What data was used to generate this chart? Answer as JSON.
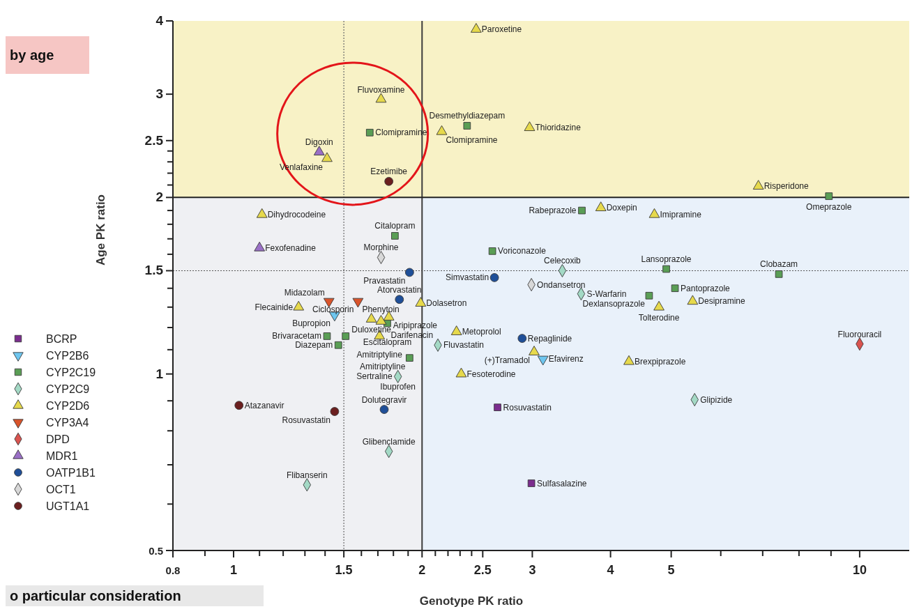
{
  "chart_data": {
    "type": "scatter",
    "xlabel": "Genotype PK ratio",
    "ylabel": "Age PK ratio",
    "log": "xy",
    "grid": false,
    "legend": "left",
    "xlim": [
      0.8,
      12
    ],
    "xticks": [
      0.8,
      {
        "value": 0.9,
        "label": null
      },
      1,
      {
        "value": 1.1,
        "label": null
      },
      {
        "value": 1.2,
        "label": null
      },
      {
        "value": 1.3,
        "label": null
      },
      {
        "value": 1.4,
        "label": null
      },
      1.5,
      {
        "value": 1.6,
        "label": null
      },
      {
        "value": 1.7,
        "label": null
      },
      {
        "value": 1.8,
        "label": null
      },
      {
        "value": 1.9,
        "label": null
      },
      2,
      {
        "value": 2.1,
        "label": null
      },
      {
        "value": 2.2,
        "label": null
      },
      {
        "value": 2.3,
        "label": null
      },
      {
        "value": 2.4,
        "label": null
      },
      2.5,
      3,
      4,
      5,
      {
        "value": 6,
        "label": null
      },
      {
        "value": 7,
        "label": null
      },
      {
        "value": 8,
        "label": null
      },
      {
        "value": 9,
        "label": null
      },
      10
    ],
    "ylim": [
      0.5,
      4
    ],
    "yticks": [
      0.5,
      {
        "value": 0.6,
        "label": null
      },
      {
        "value": 0.7,
        "label": null
      },
      {
        "value": 0.8,
        "label": null
      },
      {
        "value": 0.9,
        "label": null
      },
      1,
      {
        "value": 1.1,
        "label": null
      },
      {
        "value": 1.2,
        "label": null
      },
      {
        "value": 1.3,
        "label": null
      },
      {
        "value": 1.4,
        "label": null
      },
      1.5,
      {
        "value": 1.6,
        "label": null
      },
      {
        "value": 1.7,
        "label": null
      },
      {
        "value": 1.8,
        "label": null
      },
      {
        "value": 1.9,
        "label": null
      },
      2,
      {
        "value": 2.1,
        "label": null
      },
      {
        "value": 2.2,
        "label": null
      },
      {
        "value": 2.3,
        "label": null
      },
      {
        "value": 2.4,
        "label": null
      },
      2.5,
      3,
      4
    ],
    "bands": [
      {
        "axis": "x",
        "from": 0.8,
        "to": 2,
        "color": "#eff0f3"
      },
      {
        "axis": "x",
        "from": 2,
        "to": 12,
        "color": "#e9f1fa"
      },
      {
        "axis": "y",
        "from": 2,
        "to": 4,
        "color": "#f8f2c6"
      }
    ],
    "ref_lines": [
      {
        "axis": "x",
        "value": 1.5,
        "line_style": "dotted",
        "color": "#6a6a6a"
      },
      {
        "axis": "y",
        "value": 1.5,
        "line_style": "dotted",
        "color": "#555555"
      },
      {
        "axis": "x",
        "value": 2,
        "line_style": "solid",
        "color": "#3c3c3c"
      },
      {
        "axis": "y",
        "value": 2,
        "line_style": "solid",
        "color": "#222222"
      }
    ],
    "series": [
      {
        "name": "BCRP",
        "color": "#7b2d8e",
        "marker": "square",
        "x": [
          2.64,
          2.99
        ],
        "values": [
          0.877,
          0.651
        ]
      },
      {
        "name": "CYP2B6",
        "color": "#6ec6ef",
        "marker": "triangle-down",
        "x": [
          1.45,
          3.12
        ],
        "values": [
          1.26,
          1.06
        ]
      },
      {
        "name": "CYP2C19",
        "color": "#5a9e55",
        "marker": "square",
        "x": [
          1.65,
          2.36,
          8.93,
          3.6,
          1.81,
          2.59,
          4.91,
          7.43,
          5.07,
          4.61,
          1.76,
          1.41,
          1.51,
          1.47,
          1.91
        ],
        "values": [
          2.58,
          2.65,
          2.01,
          1.9,
          1.72,
          1.62,
          1.51,
          1.48,
          1.4,
          1.36,
          1.22,
          1.16,
          1.16,
          1.12,
          1.065
        ]
      },
      {
        "name": "CYP2C9",
        "color": "#a3d9c5",
        "marker": "diamond",
        "x": [
          3.35,
          3.59,
          2.12,
          1.83,
          1.77,
          1.31,
          5.45
        ],
        "values": [
          1.5,
          1.37,
          1.12,
          0.99,
          0.738,
          0.647,
          0.904
        ]
      },
      {
        "name": "CYP2D6",
        "color": "#e6d94c",
        "marker": "triangle",
        "x": [
          2.44,
          1.72,
          1.41,
          2.15,
          2.97,
          6.89,
          3.86,
          4.7,
          1.11,
          1.27,
          1.99,
          1.66,
          1.72,
          1.77,
          1.71,
          2.27,
          3.02,
          2.31,
          4.28,
          4.78,
          5.41
        ],
        "values": [
          3.87,
          2.94,
          2.33,
          2.59,
          2.63,
          2.09,
          1.92,
          1.87,
          1.87,
          1.3,
          1.32,
          1.24,
          1.23,
          1.25,
          1.16,
          1.18,
          1.09,
          1.0,
          1.05,
          1.3,
          1.33
        ]
      },
      {
        "name": "CYP3A4",
        "color": "#d9542b",
        "marker": "triangle-down",
        "x": [
          1.42,
          1.58
        ],
        "values": [
          1.33,
          1.33
        ]
      },
      {
        "name": "DPD",
        "color": "#d9534f",
        "marker": "diamond",
        "x": [
          10
        ],
        "values": [
          1.125
        ]
      },
      {
        "name": "MDR1",
        "color": "#9a70c6",
        "marker": "triangle",
        "x": [
          1.37,
          1.1
        ],
        "values": [
          2.39,
          1.64
        ]
      },
      {
        "name": "OATP1B1",
        "color": "#1f4f98",
        "marker": "circle",
        "x": [
          1.91,
          1.84,
          2.61,
          2.89,
          1.74
        ],
        "values": [
          1.49,
          1.34,
          1.46,
          1.15,
          0.87
        ]
      },
      {
        "name": "OCT1",
        "color": "#d8d8d8",
        "marker": "diamond",
        "x": [
          1.72,
          2.99
        ],
        "values": [
          1.58,
          1.42
        ]
      },
      {
        "name": "UGT1A1",
        "color": "#6b1f1f",
        "marker": "circle",
        "x": [
          1.77,
          1.02,
          1.45
        ],
        "values": [
          2.13,
          0.884,
          0.863
        ]
      }
    ],
    "annotations": [
      "by age",
      "o particular consideration",
      {
        "text": "Paroxetine",
        "x": 2.44,
        "y": 3.87
      },
      {
        "text": "Fluvoxamine",
        "x": 1.72,
        "y": 2.94
      },
      {
        "text": "Clomipramine",
        "x": 1.65,
        "y": 2.58
      },
      {
        "text": "Digoxin",
        "x": 1.37,
        "y": 2.39
      },
      {
        "text": "Venlafaxine",
        "x": 1.41,
        "y": 2.33
      },
      {
        "text": "Ezetimibe",
        "x": 1.77,
        "y": 2.13
      },
      {
        "text": "Desmethyldiazepam",
        "x": 2.36,
        "y": 2.65
      },
      {
        "text": "Clomipramine",
        "x": 2.15,
        "y": 2.59
      },
      {
        "text": "Thioridazine",
        "x": 2.97,
        "y": 2.63
      },
      {
        "text": "Risperidone",
        "x": 6.89,
        "y": 2.09
      },
      {
        "text": "Omeprazole",
        "x": 8.93,
        "y": 2.01
      },
      {
        "text": "Doxepin",
        "x": 3.86,
        "y": 1.92
      },
      {
        "text": "Imipramine",
        "x": 4.7,
        "y": 1.87
      },
      {
        "text": "Rabeprazole",
        "x": 3.6,
        "y": 1.9
      },
      {
        "text": "Dihydrocodeine",
        "x": 1.11,
        "y": 1.87
      },
      {
        "text": "Citalopram",
        "x": 1.81,
        "y": 1.72
      },
      {
        "text": "Fexofenadine",
        "x": 1.1,
        "y": 1.64
      },
      {
        "text": "Morphine",
        "x": 1.72,
        "y": 1.58
      },
      {
        "text": "Voriconazole",
        "x": 2.59,
        "y": 1.62
      },
      {
        "text": "Pravastatin",
        "x": 1.91,
        "y": 1.49
      },
      {
        "text": "Lansoprazole",
        "x": 4.91,
        "y": 1.51
      },
      {
        "text": "Clobazam",
        "x": 7.43,
        "y": 1.48
      },
      {
        "text": "Simvastatin",
        "x": 2.61,
        "y": 1.46
      },
      {
        "text": "Celecoxib",
        "x": 3.35,
        "y": 1.5
      },
      {
        "text": "Ondansetron",
        "x": 2.99,
        "y": 1.42
      },
      {
        "text": "Pantoprazole",
        "x": 5.07,
        "y": 1.4
      },
      {
        "text": "Atorvastatin",
        "x": 1.84,
        "y": 1.34
      },
      {
        "text": "Phenytoin",
        "x": 1.58,
        "y": 1.33
      },
      {
        "text": "Midazolam",
        "x": 1.42,
        "y": 1.33
      },
      {
        "text": "Ciclosporin",
        "x": 1.58,
        "y": 1.33
      },
      {
        "text": "Dolasetron",
        "x": 1.99,
        "y": 1.32
      },
      {
        "text": "S-Warfarin",
        "x": 3.59,
        "y": 1.37
      },
      {
        "text": "Dexlansoprazole",
        "x": 4.61,
        "y": 1.36
      },
      {
        "text": "Desipramine",
        "x": 5.41,
        "y": 1.33
      },
      {
        "text": "Tolterodine",
        "x": 4.78,
        "y": 1.3
      },
      {
        "text": "Flecainide",
        "x": 1.27,
        "y": 1.3
      },
      {
        "text": "Bupropion",
        "x": 1.45,
        "y": 1.26
      },
      {
        "text": "Darifenacin",
        "x": 1.72,
        "y": 1.23
      },
      {
        "text": "Duloxetine",
        "x": 1.66,
        "y": 1.24
      },
      {
        "text": "Aripiprazole",
        "x": 1.77,
        "y": 1.25
      },
      {
        "text": "Escitalopram",
        "x": 1.76,
        "y": 1.22
      },
      {
        "text": "Amitriptyline",
        "x": 1.71,
        "y": 1.16
      },
      {
        "text": "Brivaracetam",
        "x": 1.41,
        "y": 1.16
      },
      {
        "text": "Diazepam",
        "x": 1.47,
        "y": 1.12
      },
      {
        "text": "Amitriptyline",
        "x": 1.91,
        "y": 1.065
      },
      {
        "text": "Metoprolol",
        "x": 2.27,
        "y": 1.18
      },
      {
        "text": "Fluvastatin",
        "x": 2.12,
        "y": 1.12
      },
      {
        "text": "Repaglinide",
        "x": 2.89,
        "y": 1.15
      },
      {
        "text": "(+)Tramadol",
        "x": 3.02,
        "y": 1.09
      },
      {
        "text": "Efavirenz",
        "x": 3.12,
        "y": 1.06
      },
      {
        "text": "Brexpiprazole",
        "x": 4.28,
        "y": 1.05
      },
      {
        "text": "Fluorouracil",
        "x": 10,
        "y": 1.125
      },
      {
        "text": "Fesoterodine",
        "x": 2.31,
        "y": 1.0
      },
      {
        "text": "Sertraline",
        "x": 1.83,
        "y": 0.99
      },
      {
        "text": "Ibuprofen",
        "x": 1.83,
        "y": 0.99
      },
      {
        "text": "Glipizide",
        "x": 5.45,
        "y": 0.904
      },
      {
        "text": "Atazanavir",
        "x": 1.02,
        "y": 0.884
      },
      {
        "text": "Rosuvastatin",
        "x": 1.45,
        "y": 0.863
      },
      {
        "text": "Dolutegravir",
        "x": 1.74,
        "y": 0.87
      },
      {
        "text": "Rosuvastatin",
        "x": 2.64,
        "y": 0.877
      },
      {
        "text": "Glibenclamide",
        "x": 1.77,
        "y": 0.738
      },
      {
        "text": "Flibanserin",
        "x": 1.31,
        "y": 0.647
      },
      {
        "text": "Sulfasalazine",
        "x": 2.99,
        "y": 0.651
      }
    ]
  }
}
